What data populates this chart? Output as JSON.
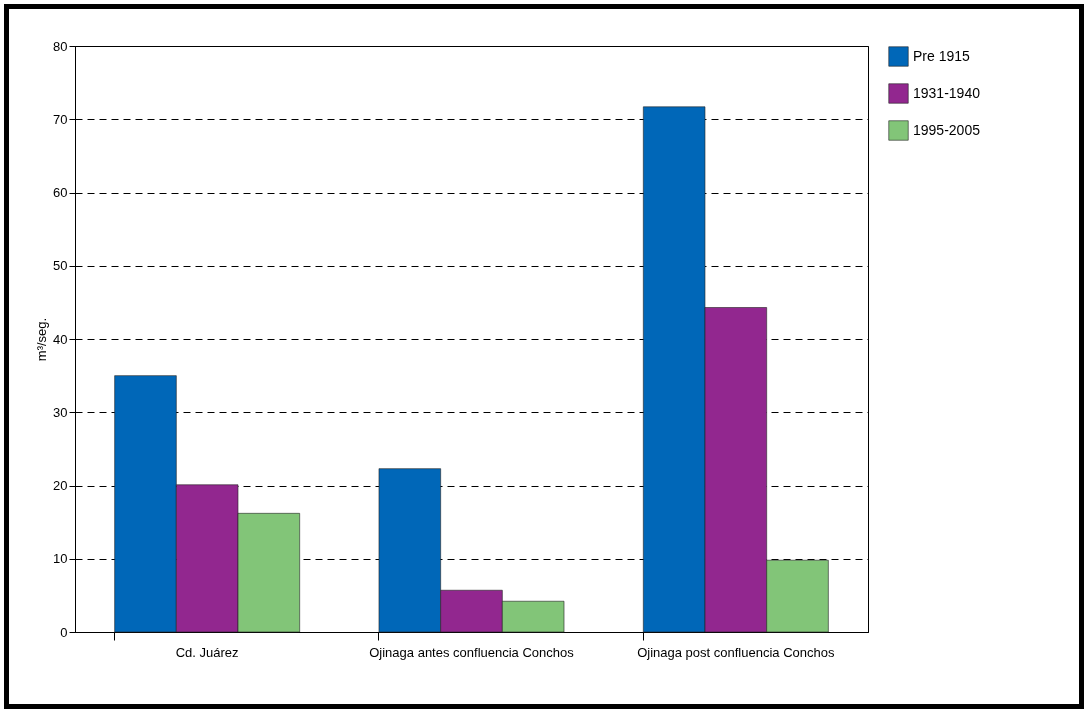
{
  "chart_data": {
    "type": "bar",
    "ylabel": "m³/seg.",
    "categories": [
      "Cd. Juárez",
      "Ojinaga antes\nconfluencia Conchos",
      "Ojinaga post\nconfluencia Conchos"
    ],
    "series": [
      {
        "name": "Pre 1915",
        "color": "#0067b8",
        "values": [
          35.0,
          22.3,
          71.7
        ]
      },
      {
        "name": "1931-1940",
        "color": "#92278f",
        "values": [
          20.1,
          5.7,
          44.3
        ]
      },
      {
        "name": "1995-2005",
        "color": "#82c578",
        "values": [
          16.2,
          4.2,
          9.8
        ]
      }
    ],
    "ylim": [
      0,
      80
    ],
    "yticks": [
      0,
      10,
      20,
      30,
      40,
      50,
      60,
      70,
      80
    ],
    "grid": "y",
    "legend": "top right"
  }
}
